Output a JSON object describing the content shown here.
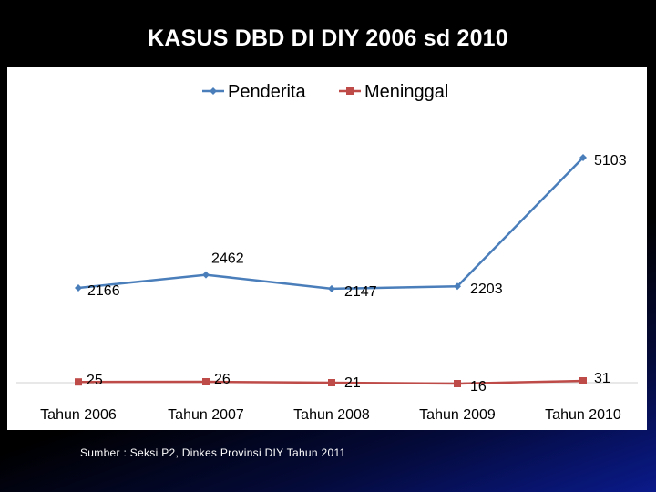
{
  "slide": {
    "title": "KASUS DBD DI DIY 2006 sd 2010",
    "source": "Sumber : Seksi P2, Dinkes Provinsi DIY Tahun 2011"
  },
  "chart_data": {
    "type": "line",
    "categories": [
      "Tahun 2006",
      "Tahun 2007",
      "Tahun 2008",
      "Tahun 2009",
      "Tahun 2010"
    ],
    "series": [
      {
        "name": "Penderita",
        "values": [
          2166,
          2462,
          2147,
          2203,
          5103
        ],
        "color": "#4a7ebb",
        "marker": "diamond"
      },
      {
        "name": "Meninggal",
        "values": [
          25,
          26,
          21,
          16,
          31
        ],
        "color": "#be4b48",
        "marker": "square"
      }
    ],
    "ylim": [
      0,
      6000
    ],
    "grid": false,
    "legend": "top"
  }
}
